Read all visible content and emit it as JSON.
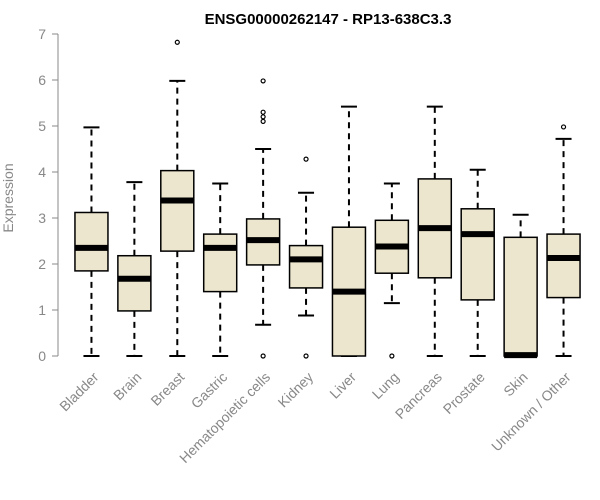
{
  "chart_data": {
    "type": "boxplot",
    "title": "ENSG00000262147 - RP13-638C3.3",
    "xlabel": "",
    "ylabel": "Expression",
    "ylim": [
      0,
      7
    ],
    "yticks": [
      "0",
      "1",
      "2",
      "3",
      "4",
      "5",
      "6",
      "7"
    ],
    "grid": false,
    "categories": [
      "Bladder",
      "Brain",
      "Breast",
      "Gastric",
      "Hematopoietic cells",
      "Kidney",
      "Liver",
      "Lung",
      "Pancreas",
      "Prostate",
      "Skin",
      "Unknown / Other"
    ],
    "boxes": [
      {
        "category": "Bladder",
        "whisker_low": 0.0,
        "q1": 1.85,
        "median": 2.35,
        "q3": 3.12,
        "whisker_high": 4.97,
        "outliers": []
      },
      {
        "category": "Brain",
        "whisker_low": 0.0,
        "q1": 0.98,
        "median": 1.68,
        "q3": 2.18,
        "whisker_high": 3.78,
        "outliers": []
      },
      {
        "category": "Breast",
        "whisker_low": 0.0,
        "q1": 2.28,
        "median": 3.38,
        "q3": 4.03,
        "whisker_high": 5.98,
        "outliers": [
          6.82
        ]
      },
      {
        "category": "Gastric",
        "whisker_low": 0.0,
        "q1": 1.4,
        "median": 2.35,
        "q3": 2.65,
        "whisker_high": 3.75,
        "outliers": []
      },
      {
        "category": "Hematopoietic cells",
        "whisker_low": 0.68,
        "q1": 1.98,
        "median": 2.52,
        "q3": 2.98,
        "whisker_high": 4.5,
        "outliers": [
          0.0,
          5.1,
          5.2,
          5.3,
          5.98
        ]
      },
      {
        "category": "Kidney",
        "whisker_low": 0.88,
        "q1": 1.48,
        "median": 2.1,
        "q3": 2.4,
        "whisker_high": 3.55,
        "outliers": [
          0.0,
          4.28
        ]
      },
      {
        "category": "Liver",
        "whisker_low": 0.0,
        "q1": 0.0,
        "median": 1.4,
        "q3": 2.8,
        "whisker_high": 5.42,
        "outliers": []
      },
      {
        "category": "Lung",
        "whisker_low": 1.15,
        "q1": 1.8,
        "median": 2.38,
        "q3": 2.95,
        "whisker_high": 3.75,
        "outliers": [
          0.0
        ]
      },
      {
        "category": "Pancreas",
        "whisker_low": 0.0,
        "q1": 1.7,
        "median": 2.78,
        "q3": 3.85,
        "whisker_high": 5.42,
        "outliers": []
      },
      {
        "category": "Prostate",
        "whisker_low": 0.0,
        "q1": 1.22,
        "median": 2.65,
        "q3": 3.2,
        "whisker_high": 4.05,
        "outliers": []
      },
      {
        "category": "Skin",
        "whisker_low": 0.0,
        "q1": 0.0,
        "median": 0.02,
        "q3": 2.58,
        "whisker_high": 3.07,
        "outliers": []
      },
      {
        "category": "Unknown / Other",
        "whisker_low": 0.0,
        "q1": 1.27,
        "median": 2.13,
        "q3": 2.65,
        "whisker_high": 4.72,
        "outliers": [
          4.98
        ]
      }
    ],
    "colors": {
      "box_fill": "#ede6ce",
      "box_stroke": "#000000",
      "axis": "#888888",
      "text": "#888888"
    }
  }
}
